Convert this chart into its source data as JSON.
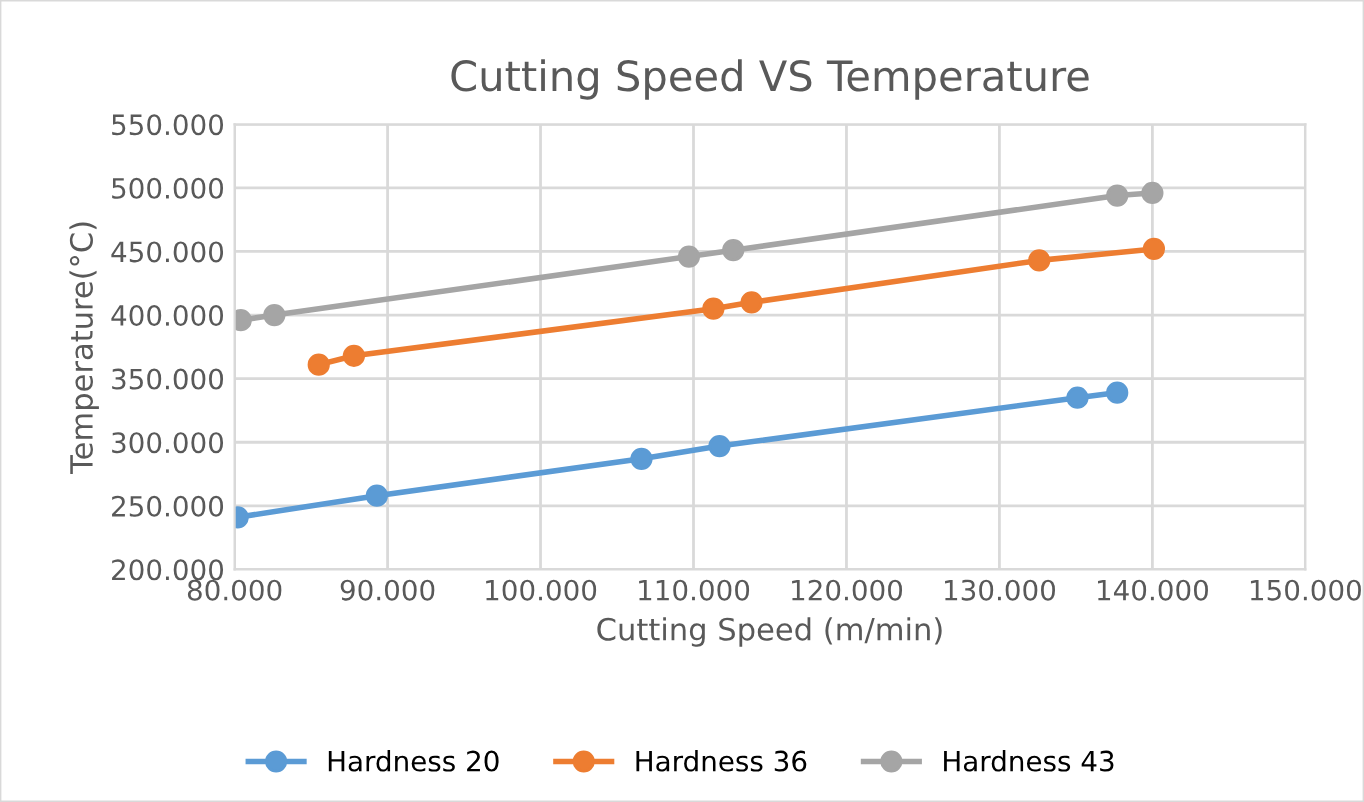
{
  "chart_data": {
    "type": "line",
    "title": "Cutting Speed VS Temperature",
    "xlabel": "Cutting Speed (m/min)",
    "ylabel": "Temperature(°C)",
    "xlim": [
      80,
      150
    ],
    "ylim": [
      200,
      550
    ],
    "xticks": [
      {
        "value": 80,
        "label": "80.000"
      },
      {
        "value": 90,
        "label": "90.000"
      },
      {
        "value": 100,
        "label": "100.000"
      },
      {
        "value": 110,
        "label": "110.000"
      },
      {
        "value": 120,
        "label": "120.000"
      },
      {
        "value": 130,
        "label": "130.000"
      },
      {
        "value": 140,
        "label": "140.000"
      },
      {
        "value": 150,
        "label": "150.000"
      }
    ],
    "yticks": [
      {
        "value": 200,
        "label": "200.000"
      },
      {
        "value": 250,
        "label": "250.000"
      },
      {
        "value": 300,
        "label": "300.000"
      },
      {
        "value": 350,
        "label": "350.000"
      },
      {
        "value": 400,
        "label": "400.000"
      },
      {
        "value": 450,
        "label": "450.000"
      },
      {
        "value": 500,
        "label": "500.000"
      },
      {
        "value": 550,
        "label": "550.000"
      }
    ],
    "grid": true,
    "legend": "bottom",
    "marker": "circle",
    "line_style": "solid",
    "series": [
      {
        "name": "Hardness 20",
        "color": "#5b9bd5",
        "x": [
          80.2,
          89.3,
          106.6,
          111.7,
          135.1,
          137.7
        ],
        "values": [
          241,
          258,
          287,
          297,
          335,
          339
        ]
      },
      {
        "name": "Hardness 36",
        "color": "#ed7d31",
        "x": [
          85.5,
          87.8,
          111.3,
          113.8,
          132.6,
          140.1
        ],
        "values": [
          361,
          368,
          405,
          410,
          443,
          452
        ]
      },
      {
        "name": "Hardness 43",
        "color": "#a5a5a5",
        "x": [
          80.4,
          82.6,
          109.7,
          112.6,
          137.7,
          140.0
        ],
        "values": [
          396,
          400,
          446,
          451,
          494,
          496
        ]
      }
    ]
  }
}
